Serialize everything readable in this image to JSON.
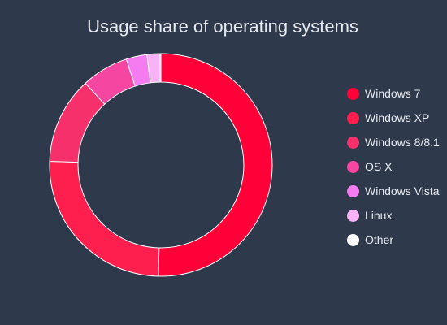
{
  "chart_data": {
    "type": "pie",
    "variant": "donut",
    "title": "Usage share of operating systems",
    "categories": [
      "Windows 7",
      "Windows XP",
      "Windows 8/8.1",
      "OS X",
      "Windows Vista",
      "Linux",
      "Other"
    ],
    "values": [
      50.0,
      25.0,
      12.5,
      6.8,
      3.0,
      1.9,
      0.1
    ],
    "colors": [
      "#ff0038",
      "#ff1f4f",
      "#f5306a",
      "#f547a2",
      "#f57cf0",
      "#f7b3f5",
      "#ffffff"
    ],
    "legend_position": "right"
  }
}
